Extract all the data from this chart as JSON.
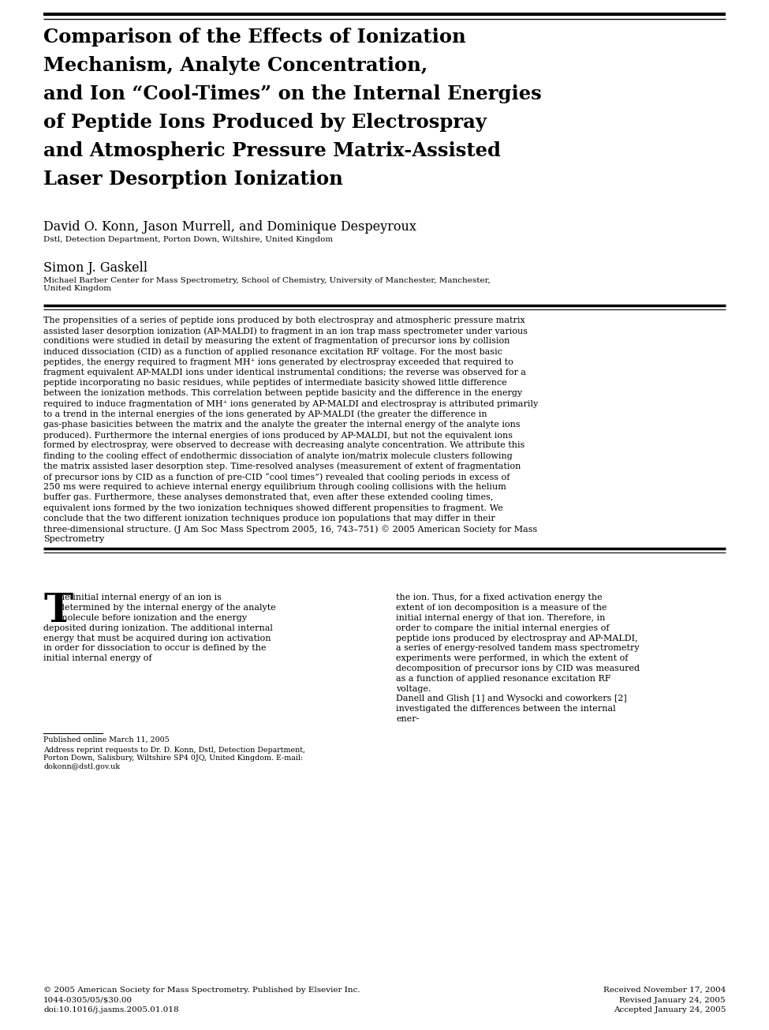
{
  "title_lines": [
    "Comparison of the Effects of Ionization",
    "Mechanism, Analyte Concentration,",
    "and Ion “Cool-Times” on the Internal Energies",
    "of Peptide Ions Produced by Electrospray",
    "and Atmospheric Pressure Matrix-Assisted",
    "Laser Desorption Ionization"
  ],
  "author1_name": "David O. Konn, Jason Murrell, and Dominique Despeyroux",
  "author1_affil": "Dstl, Detection Department, Porton Down, Wiltshire, United Kingdom",
  "author2_name": "Simon J. Gaskell",
  "author2_affil": "Michael Barber Center for Mass Spectrometry, School of Chemistry, University of Manchester, Manchester,\nUnited Kingdom",
  "abstract_text": "The propensities of a series of peptide ions produced by both electrospray and atmospheric pressure matrix assisted laser desorption ionization (AP-MALDI) to fragment in an ion trap mass spectrometer under various conditions were studied in detail by measuring the extent of fragmentation of precursor ions by collision induced dissociation (CID) as a function of applied resonance excitation RF voltage. For the most basic peptides, the energy required to fragment MH⁺ ions generated by electrospray exceeded that required to fragment equivalent AP-MALDI ions under identical instrumental conditions; the reverse was observed for a peptide incorporating no basic residues, while peptides of intermediate basicity showed little difference between the ionization methods. This correlation between peptide basicity and the difference in the energy required to induce fragmentation of MH⁺ ions generated by AP-MALDI and electrospray is attributed primarily to a trend in the internal energies of the ions generated by AP-MALDI (the greater the difference in gas-phase basicities between the matrix and the analyte the greater the internal energy of the analyte ions produced). Furthermore the internal energies of ions produced by AP-MALDI, but not the equivalent ions formed by electrospray, were observed to decrease with decreasing analyte concentration. We attribute this finding to the cooling effect of endothermic dissociation of analyte ion/matrix molecule clusters following the matrix assisted laser desorption step. Time-resolved analyses (measurement of extent of fragmentation of precursor ions by CID as a function of pre-CID “cool times”) revealed that cooling periods in excess of 250 ms were required to achieve internal energy equilibrium through cooling collisions with the helium buffer gas. Furthermore, these analyses demonstrated that, even after these extended cooling times, equivalent ions formed by the two ionization techniques showed different propensities to fragment. We conclude that the two different ionization techniques produce ion populations that may differ in their three-dimensional structure.  (J Am Soc Mass Spectrom 2005, 16, 743–751) © 2005 American Society for Mass Spectrometry",
  "body_left_rest": "he initial internal energy of an ion is determined by the internal energy of the analyte molecule before ionization and the energy deposited during ionization. The additional internal energy that must be acquired during ion activation in order for dissociation to occur is defined by the initial internal energy of",
  "body_right": "the ion. Thus, for a fixed activation energy the extent of ion decomposition is a measure of the initial internal energy of that ion. Therefore, in order to compare the initial internal energies of peptide ions produced by electrospray and AP-MALDI, a series of energy-resolved tandem mass spectrometry experiments were performed, in which the extent of decomposition of precursor ions by CID was measured as a function of applied resonance excitation RF voltage.\n    Danell and Glish [1] and Wysocki and coworkers [2] investigated the differences between the internal ener-",
  "footnote_sep": "Published online March 11, 2005",
  "footnote_addr": "Address reprint requests to Dr. D. Konn, Dstl, Detection Department,\nPorton Down, Salisbury, Wiltshire SP4 0JQ, United Kingdom. E-mail:\ndokonn@dstl.gov.uk",
  "footer_left_lines": [
    "© 2005 American Society for Mass Spectrometry. Published by Elsevier Inc.",
    "1044-0305/05/$30.00",
    "doi:10.1016/j.jasms.2005.01.018"
  ],
  "footer_right_lines": [
    "Received November 17, 2004",
    "Revised January 24, 2005",
    "Accepted January 24, 2005"
  ]
}
